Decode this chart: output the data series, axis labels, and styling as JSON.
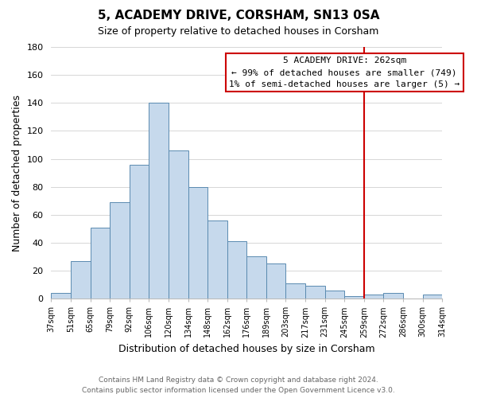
{
  "title": "5, ACADEMY DRIVE, CORSHAM, SN13 0SA",
  "subtitle": "Size of property relative to detached houses in Corsham",
  "xlabel": "Distribution of detached houses by size in Corsham",
  "ylabel": "Number of detached properties",
  "bar_labels": [
    "37sqm",
    "51sqm",
    "65sqm",
    "79sqm",
    "92sqm",
    "106sqm",
    "120sqm",
    "134sqm",
    "148sqm",
    "162sqm",
    "176sqm",
    "189sqm",
    "203sqm",
    "217sqm",
    "231sqm",
    "245sqm",
    "259sqm",
    "272sqm",
    "286sqm",
    "300sqm",
    "314sqm"
  ],
  "bar_values": [
    4,
    27,
    51,
    69,
    96,
    140,
    106,
    80,
    56,
    41,
    30,
    25,
    11,
    9,
    6,
    2,
    3,
    4,
    0,
    3
  ],
  "bar_color": "#c6d9ec",
  "bar_edge_color": "#5a8ab0",
  "ylim": [
    0,
    180
  ],
  "yticks": [
    0,
    20,
    40,
    60,
    80,
    100,
    120,
    140,
    160,
    180
  ],
  "vline_color": "#cc0000",
  "annotation_title": "5 ACADEMY DRIVE: 262sqm",
  "annotation_line1": "← 99% of detached houses are smaller (749)",
  "annotation_line2": "1% of semi-detached houses are larger (5) →",
  "annotation_box_color": "#ffffff",
  "annotation_box_edge": "#cc0000",
  "footer_line1": "Contains HM Land Registry data © Crown copyright and database right 2024.",
  "footer_line2": "Contains public sector information licensed under the Open Government Licence v3.0.",
  "background_color": "#ffffff",
  "grid_color": "#d0d0d0"
}
